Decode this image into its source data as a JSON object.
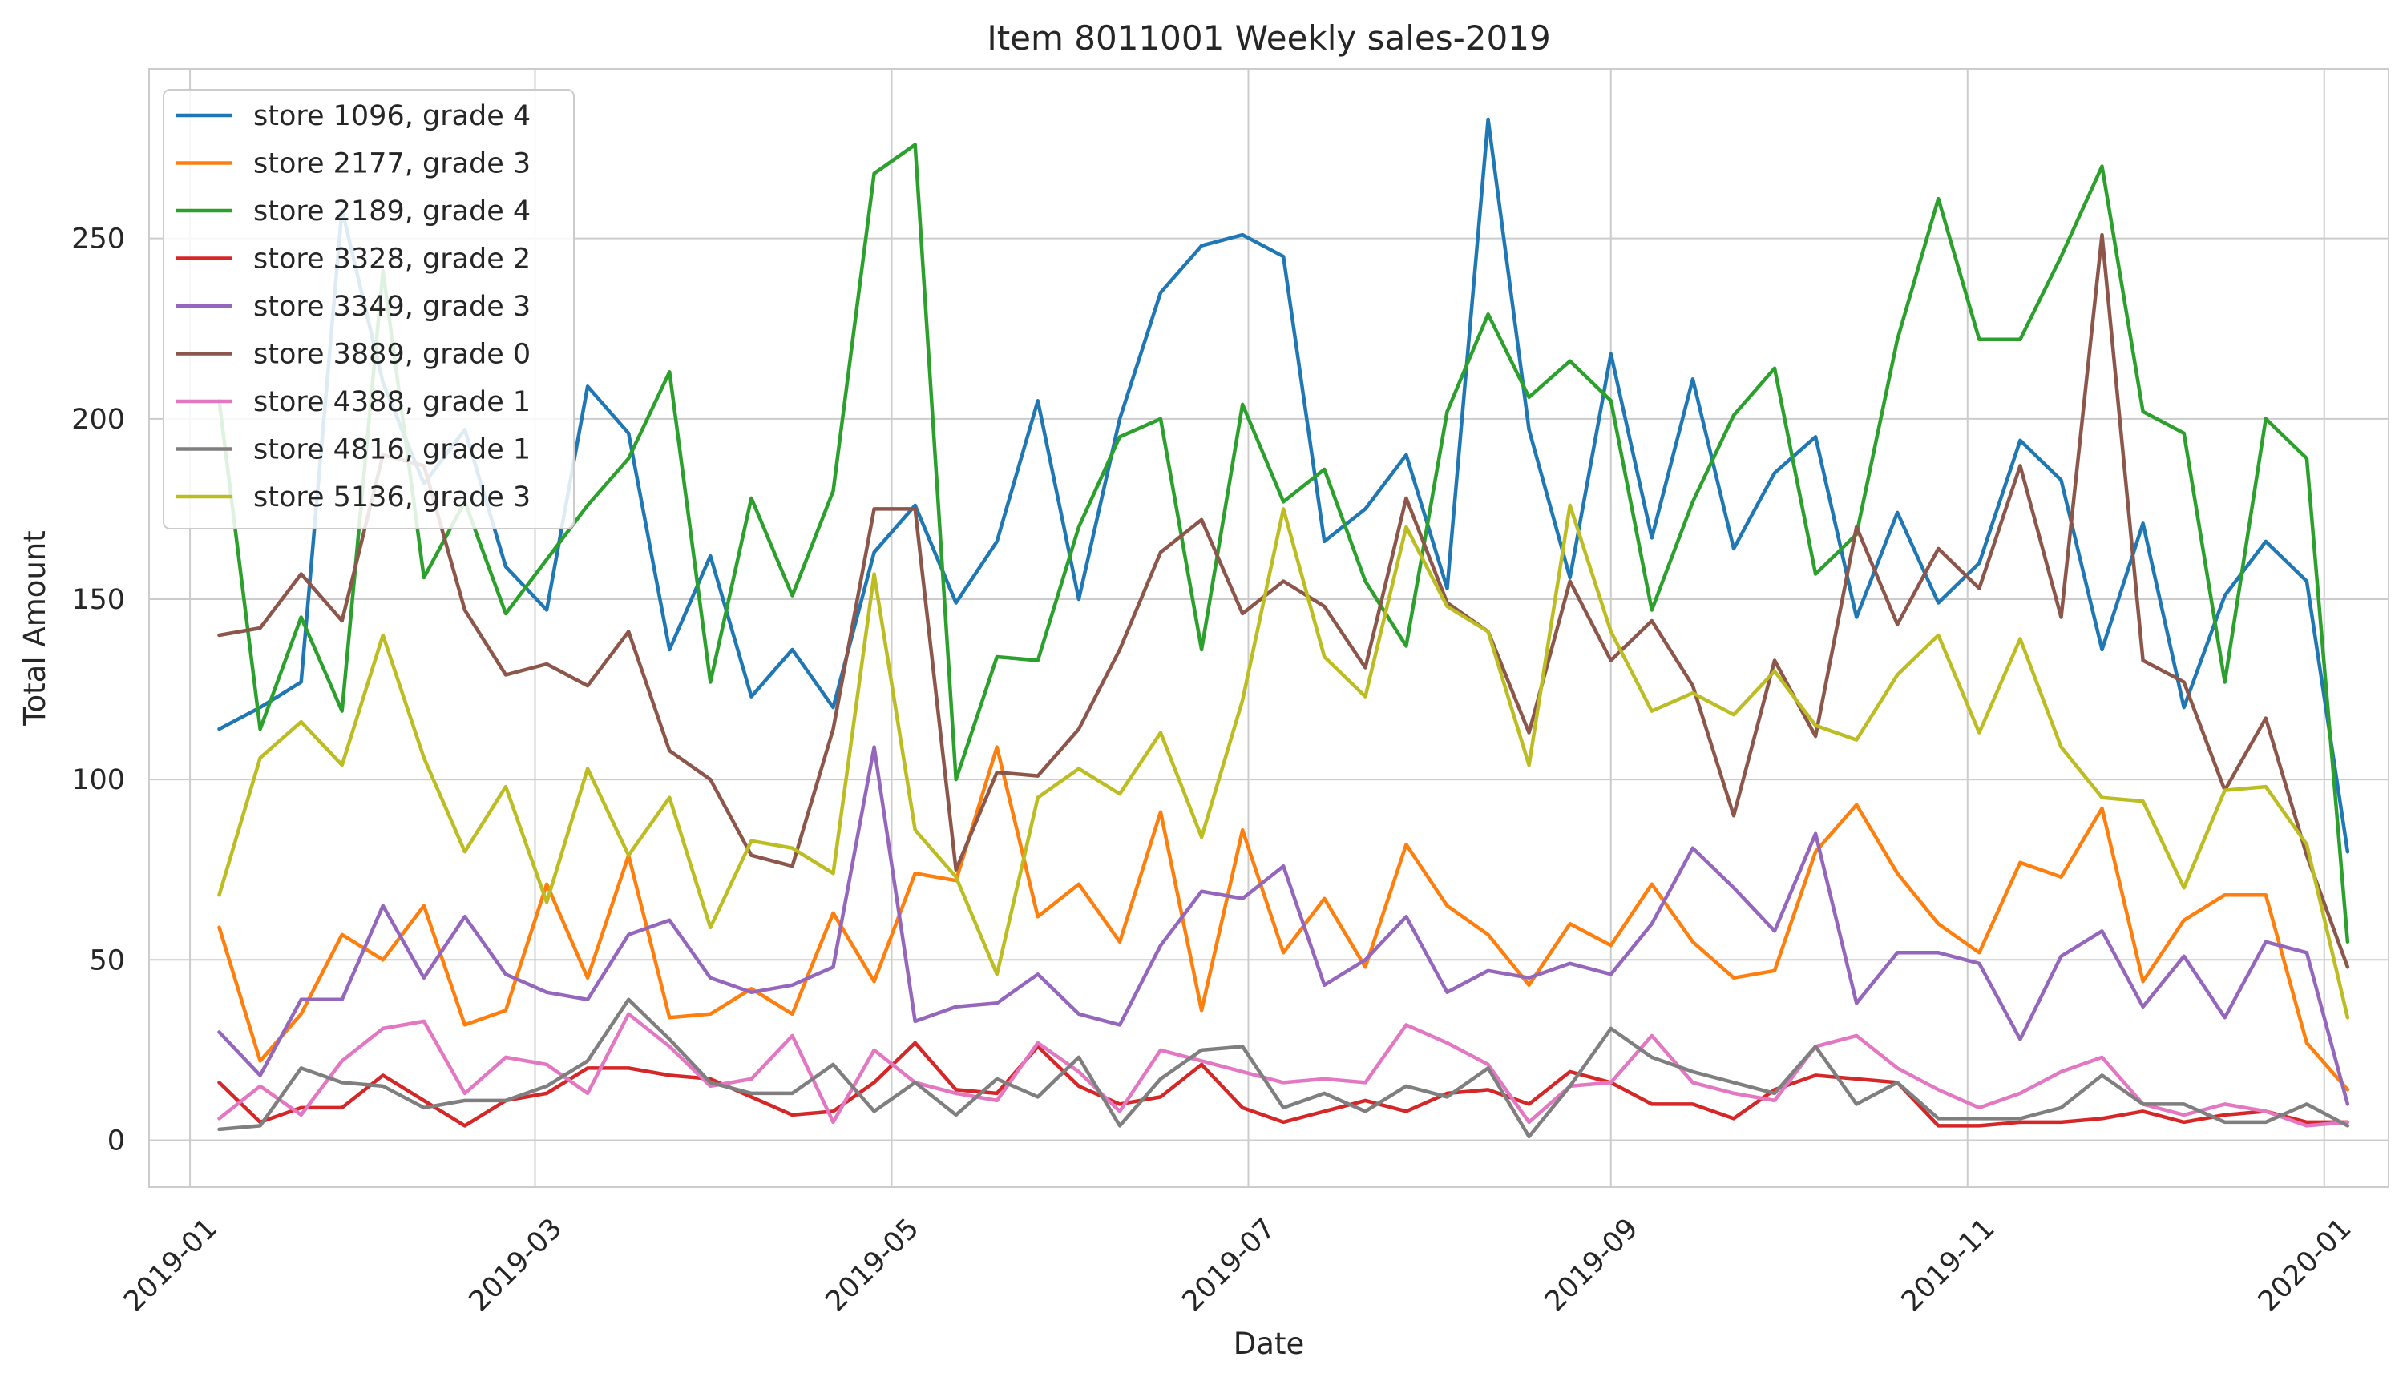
{
  "chart_data": {
    "type": "line",
    "title": "Item 8011001 Weekly sales-2019",
    "xlabel": "Date",
    "ylabel": "Total Amount",
    "x_axis_type": "date",
    "xlim": [
      "2018-12-25",
      "2020-01-12"
    ],
    "ylim": [
      -13,
      297
    ],
    "x_ticks": [
      "2019-01-01",
      "2019-03-01",
      "2019-05-01",
      "2019-07-01",
      "2019-09-01",
      "2019-11-01",
      "2020-01-01"
    ],
    "x_tick_labels": [
      "2019-01",
      "2019-03",
      "2019-05",
      "2019-07",
      "2019-09",
      "2019-11",
      "2020-01"
    ],
    "y_ticks": [
      0,
      50,
      100,
      150,
      200,
      250
    ],
    "y_tick_labels": [
      "0",
      "50",
      "100",
      "150",
      "200",
      "250"
    ],
    "grid": true,
    "legend_position": "top-left",
    "x": [
      "2019-01-06",
      "2019-01-13",
      "2019-01-20",
      "2019-01-27",
      "2019-02-03",
      "2019-02-10",
      "2019-02-17",
      "2019-02-24",
      "2019-03-03",
      "2019-03-10",
      "2019-03-17",
      "2019-03-24",
      "2019-03-31",
      "2019-04-07",
      "2019-04-14",
      "2019-04-21",
      "2019-04-28",
      "2019-05-05",
      "2019-05-12",
      "2019-05-19",
      "2019-05-26",
      "2019-06-02",
      "2019-06-09",
      "2019-06-16",
      "2019-06-23",
      "2019-06-30",
      "2019-07-07",
      "2019-07-14",
      "2019-07-21",
      "2019-07-28",
      "2019-08-04",
      "2019-08-11",
      "2019-08-18",
      "2019-08-25",
      "2019-09-01",
      "2019-09-08",
      "2019-09-15",
      "2019-09-22",
      "2019-09-29",
      "2019-10-06",
      "2019-10-13",
      "2019-10-20",
      "2019-10-27",
      "2019-11-03",
      "2019-11-10",
      "2019-11-17",
      "2019-11-24",
      "2019-12-01",
      "2019-12-08",
      "2019-12-15",
      "2019-12-22",
      "2019-12-29",
      "2020-01-05"
    ],
    "series": [
      {
        "name": "store 1096, grade 4",
        "color": "#1f77b4",
        "values": [
          114,
          120,
          127,
          258,
          210,
          182,
          197,
          159,
          147,
          209,
          196,
          136,
          162,
          123,
          136,
          120,
          163,
          176,
          149,
          166,
          205,
          150,
          200,
          235,
          248,
          251,
          245,
          166,
          175,
          190,
          153,
          283,
          197,
          156,
          218,
          167,
          211,
          164,
          185,
          195,
          145,
          174,
          149,
          160,
          194,
          183,
          136,
          171,
          120,
          151,
          166,
          155,
          80
        ]
      },
      {
        "name": "store 2177, grade 3",
        "color": "#ff7f0e",
        "values": [
          59,
          22,
          35,
          57,
          50,
          65,
          32,
          36,
          71,
          45,
          79,
          34,
          35,
          42,
          35,
          63,
          44,
          74,
          72,
          109,
          62,
          71,
          55,
          91,
          36,
          86,
          52,
          67,
          48,
          82,
          65,
          57,
          43,
          60,
          54,
          71,
          55,
          45,
          47,
          80,
          93,
          74,
          60,
          52,
          77,
          73,
          92,
          44,
          61,
          68,
          68,
          27,
          14
        ]
      },
      {
        "name": "store 2189, grade 4",
        "color": "#2ca02c",
        "values": [
          205,
          114,
          145,
          119,
          241,
          156,
          177,
          146,
          161,
          176,
          189,
          213,
          127,
          178,
          151,
          180,
          268,
          276,
          100,
          134,
          133,
          170,
          195,
          200,
          136,
          204,
          177,
          186,
          155,
          137,
          202,
          229,
          206,
          216,
          205,
          147,
          177,
          201,
          214,
          157,
          168,
          222,
          261,
          222,
          222,
          245,
          270,
          202,
          196,
          127,
          200,
          189,
          55
        ]
      },
      {
        "name": "store 3328, grade 2",
        "color": "#d62728",
        "values": [
          16,
          5,
          9,
          9,
          18,
          11,
          4,
          11,
          13,
          20,
          20,
          18,
          17,
          12,
          7,
          8,
          16,
          27,
          14,
          13,
          26,
          15,
          10,
          12,
          21,
          9,
          5,
          8,
          11,
          8,
          13,
          14,
          10,
          19,
          16,
          10,
          10,
          6,
          14,
          18,
          17,
          16,
          4,
          4,
          5,
          5,
          6,
          8,
          5,
          7,
          8,
          5,
          5
        ]
      },
      {
        "name": "store 3349, grade 3",
        "color": "#9467bd",
        "values": [
          30,
          18,
          39,
          39,
          65,
          45,
          62,
          46,
          41,
          39,
          57,
          61,
          45,
          41,
          43,
          48,
          109,
          33,
          37,
          38,
          46,
          35,
          32,
          54,
          69,
          67,
          76,
          43,
          50,
          62,
          41,
          47,
          45,
          49,
          46,
          60,
          81,
          70,
          58,
          85,
          38,
          52,
          52,
          49,
          28,
          51,
          58,
          37,
          51,
          34,
          55,
          52,
          10
        ]
      },
      {
        "name": "store 3889, grade 0",
        "color": "#8c564b",
        "values": [
          140,
          142,
          157,
          144,
          190,
          187,
          147,
          129,
          132,
          126,
          141,
          108,
          100,
          79,
          76,
          114,
          175,
          175,
          75,
          102,
          101,
          114,
          136,
          163,
          172,
          146,
          155,
          148,
          131,
          178,
          149,
          141,
          113,
          155,
          133,
          144,
          126,
          90,
          133,
          112,
          170,
          143,
          164,
          153,
          187,
          145,
          251,
          133,
          127,
          97,
          117,
          79,
          48
        ]
      },
      {
        "name": "store 4388, grade 1",
        "color": "#e377c2",
        "values": [
          6,
          15,
          7,
          22,
          31,
          33,
          13,
          23,
          21,
          13,
          35,
          26,
          15,
          17,
          29,
          5,
          25,
          16,
          13,
          11,
          27,
          19,
          8,
          25,
          22,
          19,
          16,
          17,
          16,
          32,
          27,
          21,
          5,
          15,
          16,
          29,
          16,
          13,
          11,
          26,
          29,
          20,
          14,
          9,
          13,
          19,
          23,
          10,
          7,
          10,
          8,
          4,
          5
        ]
      },
      {
        "name": "store 4816, grade 1",
        "color": "#7f7f7f",
        "values": [
          3,
          4,
          20,
          16,
          15,
          9,
          11,
          11,
          15,
          22,
          39,
          28,
          16,
          13,
          13,
          21,
          8,
          16,
          7,
          17,
          12,
          23,
          4,
          17,
          25,
          26,
          9,
          13,
          8,
          15,
          12,
          20,
          1,
          15,
          31,
          23,
          19,
          16,
          13,
          26,
          10,
          16,
          6,
          6,
          6,
          9,
          18,
          10,
          10,
          5,
          5,
          10,
          4
        ]
      },
      {
        "name": "store 5136, grade 3",
        "color": "#bcbd22",
        "values": [
          68,
          106,
          116,
          104,
          140,
          106,
          80,
          98,
          66,
          103,
          79,
          95,
          59,
          83,
          81,
          74,
          157,
          86,
          73,
          46,
          95,
          103,
          96,
          113,
          84,
          122,
          175,
          134,
          123,
          170,
          148,
          141,
          104,
          176,
          141,
          119,
          124,
          118,
          130,
          115,
          111,
          129,
          140,
          113,
          139,
          109,
          95,
          94,
          70,
          97,
          98,
          82,
          34
        ]
      }
    ]
  }
}
